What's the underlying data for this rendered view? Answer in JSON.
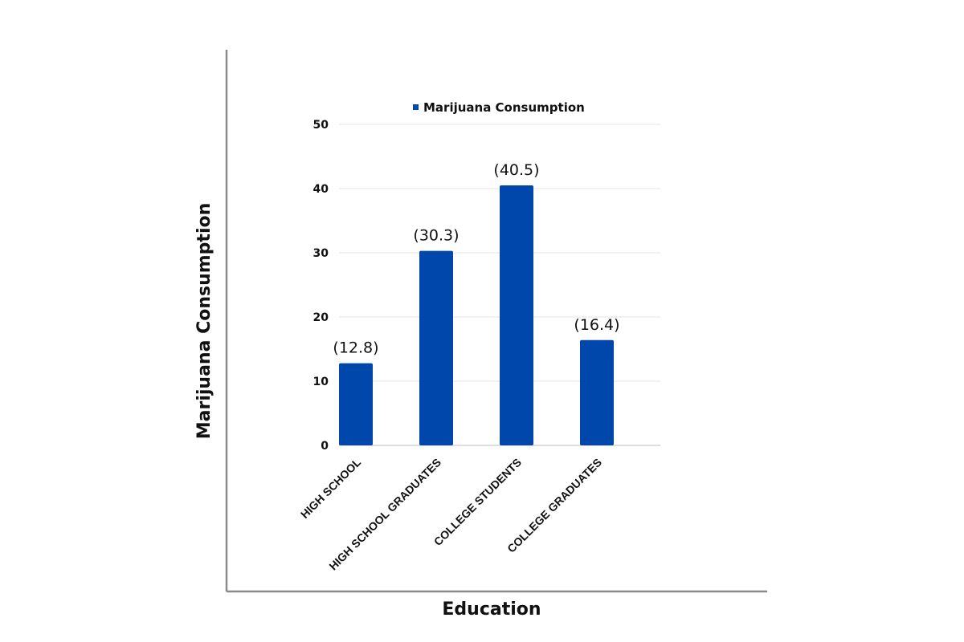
{
  "chart_data": {
    "type": "bar",
    "categories": [
      "HIGH SCHOOL",
      "HIGH SCHOOL GRADUATES",
      "COLLEGE STUDENTS",
      "COLLEGE GRADUATES"
    ],
    "series": [
      {
        "name": "Marijuana Consumption",
        "values": [
          12.8,
          30.3,
          40.5,
          16.4
        ],
        "data_labels": [
          "(12.8)",
          "(30.3)",
          "(40.5)",
          "(16.4)"
        ]
      }
    ],
    "title": "",
    "xlabel": "Education",
    "ylabel": "Marijuana Consumption",
    "ylim": [
      0,
      50
    ],
    "yticks": [
      0,
      10,
      20,
      30,
      40,
      50
    ],
    "grid": true,
    "legend_position": "top-center",
    "colors": {
      "bar": "#0047AB",
      "gridline": "#e3e3e3",
      "outer_axis": "#8a8a8a"
    }
  }
}
